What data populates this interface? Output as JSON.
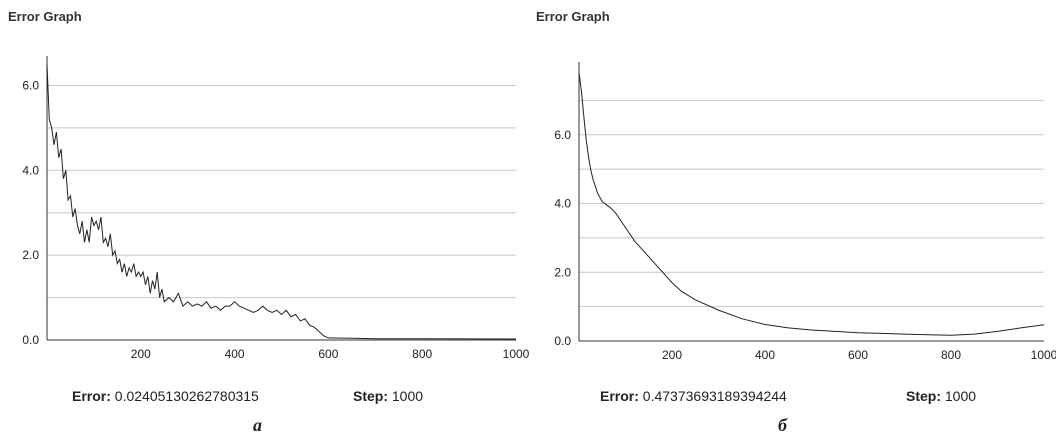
{
  "chart_data": [
    {
      "type": "line",
      "title": "Error Graph",
      "caption": "а",
      "xlim": [
        0,
        1000
      ],
      "ylim": [
        0,
        6.6
      ],
      "x_ticks": [
        200,
        400,
        600,
        800,
        1000
      ],
      "x_tick_labels": [
        "200",
        "400",
        "600",
        "800",
        "1000"
      ],
      "y_ticks": [
        0.0,
        2.0,
        4.0,
        6.0
      ],
      "y_tick_labels": [
        "0.0",
        "2.0",
        "4.0",
        "6.0"
      ],
      "grid_y": [
        1.0,
        2.0,
        3.0,
        4.0,
        5.0,
        6.0
      ],
      "grid": true,
      "color": "#222222",
      "series": [
        {
          "x": [
            0,
            5,
            10,
            15,
            20,
            25,
            30,
            35,
            40,
            45,
            50,
            55,
            60,
            65,
            70,
            75,
            80,
            85,
            90,
            95,
            100,
            105,
            110,
            115,
            120,
            125,
            130,
            135,
            140,
            145,
            150,
            155,
            160,
            165,
            170,
            175,
            180,
            185,
            190,
            195,
            200,
            205,
            210,
            215,
            220,
            225,
            230,
            235,
            240,
            245,
            250,
            260,
            270,
            280,
            290,
            300,
            310,
            320,
            330,
            340,
            350,
            360,
            370,
            380,
            390,
            400,
            410,
            420,
            430,
            440,
            450,
            460,
            470,
            480,
            490,
            500,
            510,
            520,
            530,
            540,
            550,
            560,
            570,
            580,
            590,
            600,
            650,
            700,
            800,
            900,
            1000
          ],
          "y": [
            6.5,
            5.2,
            5.0,
            4.6,
            4.9,
            4.3,
            4.5,
            3.8,
            4.0,
            3.3,
            3.4,
            2.9,
            3.1,
            2.7,
            2.5,
            2.8,
            2.3,
            2.6,
            2.3,
            2.9,
            2.7,
            2.8,
            2.6,
            2.9,
            2.3,
            2.4,
            2.2,
            2.5,
            2.0,
            2.1,
            1.8,
            1.9,
            1.6,
            1.8,
            1.5,
            1.7,
            1.6,
            1.8,
            1.5,
            1.6,
            1.5,
            1.6,
            1.3,
            1.5,
            1.1,
            1.4,
            1.2,
            1.6,
            1.0,
            1.2,
            0.9,
            1.0,
            0.9,
            1.1,
            0.8,
            0.9,
            0.8,
            0.85,
            0.8,
            0.9,
            0.75,
            0.8,
            0.7,
            0.8,
            0.8,
            0.9,
            0.8,
            0.75,
            0.7,
            0.65,
            0.7,
            0.8,
            0.7,
            0.65,
            0.7,
            0.6,
            0.7,
            0.55,
            0.6,
            0.45,
            0.5,
            0.35,
            0.3,
            0.2,
            0.1,
            0.05,
            0.04,
            0.03,
            0.03,
            0.025,
            0.024
          ]
        }
      ],
      "footer": {
        "error_label": "Error:",
        "error_value": "0.02405130262780315",
        "step_label": "Step:",
        "step_value": "1000"
      }
    },
    {
      "type": "line",
      "title": "Error Graph",
      "caption": "б",
      "xlim": [
        0,
        1000
      ],
      "ylim": [
        0,
        8.0
      ],
      "x_ticks": [
        200,
        400,
        600,
        800,
        1000
      ],
      "x_tick_labels": [
        "200",
        "400",
        "600",
        "800",
        "1000"
      ],
      "y_ticks": [
        0.0,
        2.0,
        4.0,
        6.0
      ],
      "y_tick_labels": [
        "0.0",
        "2.0",
        "4.0",
        "6.0"
      ],
      "grid_y": [
        1.0,
        2.0,
        3.0,
        4.0,
        5.0,
        6.0,
        7.0
      ],
      "grid": true,
      "color": "#222222",
      "series": [
        {
          "x": [
            0,
            5,
            10,
            15,
            20,
            25,
            30,
            40,
            50,
            60,
            70,
            80,
            100,
            120,
            140,
            160,
            180,
            200,
            220,
            250,
            300,
            350,
            400,
            450,
            500,
            550,
            600,
            650,
            700,
            750,
            800,
            850,
            900,
            950,
            1000
          ],
          "y": [
            7.8,
            7.3,
            6.6,
            5.9,
            5.4,
            5.0,
            4.7,
            4.3,
            4.05,
            3.95,
            3.85,
            3.7,
            3.3,
            2.9,
            2.6,
            2.3,
            2.0,
            1.7,
            1.45,
            1.2,
            0.9,
            0.65,
            0.48,
            0.38,
            0.32,
            0.28,
            0.24,
            0.22,
            0.2,
            0.18,
            0.17,
            0.2,
            0.28,
            0.38,
            0.47
          ]
        }
      ],
      "footer": {
        "error_label": "Error:",
        "error_value": "0.47373693189394244",
        "step_label": "Step:",
        "step_value": "1000"
      }
    }
  ]
}
